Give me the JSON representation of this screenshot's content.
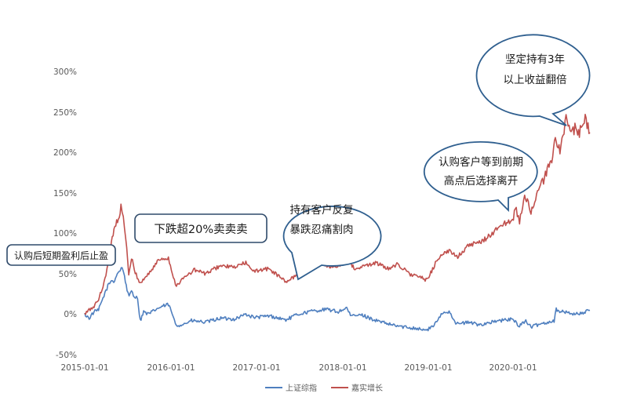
{
  "chart_data": {
    "type": "line",
    "title": "",
    "xlabel": "",
    "ylabel": "",
    "x_ticks": [
      "2015-01-01",
      "2016-01-01",
      "2017-01-01",
      "2018-01-01",
      "2019-01-01",
      "2020-01-01"
    ],
    "y_ticks": [
      "-50%",
      "0%",
      "50%",
      "100%",
      "150%",
      "200%",
      "250%",
      "300%"
    ],
    "ylim": [
      -50,
      300
    ],
    "y_unit": "%",
    "xlim": [
      "2015-01-01",
      "2020-11-30"
    ],
    "grid": false,
    "legend_position": "bottom",
    "series": [
      {
        "name": "上证综指",
        "color": "#4f7fbf",
        "points": [
          [
            "2015-01-01",
            0
          ],
          [
            "2015-01-20",
            -5
          ],
          [
            "2015-02-10",
            3
          ],
          [
            "2015-03-01",
            5
          ],
          [
            "2015-03-20",
            20
          ],
          [
            "2015-04-10",
            35
          ],
          [
            "2015-04-25",
            42
          ],
          [
            "2015-05-05",
            40
          ],
          [
            "2015-05-20",
            50
          ],
          [
            "2015-06-10",
            58
          ],
          [
            "2015-06-20",
            48
          ],
          [
            "2015-07-01",
            28
          ],
          [
            "2015-07-10",
            22
          ],
          [
            "2015-07-20",
            30
          ],
          [
            "2015-08-01",
            22
          ],
          [
            "2015-08-15",
            20
          ],
          [
            "2015-08-26",
            -8
          ],
          [
            "2015-09-10",
            3
          ],
          [
            "2015-10-01",
            0
          ],
          [
            "2015-11-01",
            6
          ],
          [
            "2015-12-01",
            10
          ],
          [
            "2015-12-25",
            12
          ],
          [
            "2016-01-05",
            5
          ],
          [
            "2016-01-15",
            -5
          ],
          [
            "2016-01-28",
            -14
          ],
          [
            "2016-03-01",
            -12
          ],
          [
            "2016-04-01",
            -8
          ],
          [
            "2016-06-01",
            -10
          ],
          [
            "2016-08-01",
            -5
          ],
          [
            "2016-10-01",
            -6
          ],
          [
            "2016-11-20",
            0
          ],
          [
            "2016-12-15",
            -3
          ],
          [
            "2017-01-01",
            -4
          ],
          [
            "2017-03-01",
            -2
          ],
          [
            "2017-05-10",
            -7
          ],
          [
            "2017-07-01",
            0
          ],
          [
            "2017-09-01",
            4
          ],
          [
            "2017-11-01",
            6
          ],
          [
            "2017-12-20",
            3
          ],
          [
            "2018-01-25",
            8
          ],
          [
            "2018-02-10",
            -2
          ],
          [
            "2018-04-01",
            -1
          ],
          [
            "2018-06-01",
            -8
          ],
          [
            "2018-08-01",
            -13
          ],
          [
            "2018-10-01",
            -16
          ],
          [
            "2018-11-15",
            -17
          ],
          [
            "2019-01-04",
            -20
          ],
          [
            "2019-02-15",
            -10
          ],
          [
            "2019-03-05",
            0
          ],
          [
            "2019-04-08",
            4
          ],
          [
            "2019-05-10",
            -12
          ],
          [
            "2019-07-01",
            -10
          ],
          [
            "2019-08-15",
            -13
          ],
          [
            "2019-10-01",
            -10
          ],
          [
            "2019-12-31",
            -6
          ],
          [
            "2020-02-03",
            -14
          ],
          [
            "2020-03-01",
            -8
          ],
          [
            "2020-03-23",
            -16
          ],
          [
            "2020-05-01",
            -12
          ],
          [
            "2020-06-30",
            -8
          ],
          [
            "2020-07-09",
            6
          ],
          [
            "2020-08-01",
            3
          ],
          [
            "2020-09-01",
            2
          ],
          [
            "2020-10-01",
            0
          ],
          [
            "2020-11-01",
            2
          ],
          [
            "2020-11-30",
            5
          ]
        ]
      },
      {
        "name": "嘉实增长",
        "color": "#c0504d",
        "points": [
          [
            "2015-01-01",
            0
          ],
          [
            "2015-01-20",
            5
          ],
          [
            "2015-02-10",
            10
          ],
          [
            "2015-03-01",
            18
          ],
          [
            "2015-03-20",
            35
          ],
          [
            "2015-04-10",
            60
          ],
          [
            "2015-04-25",
            90
          ],
          [
            "2015-05-10",
            110
          ],
          [
            "2015-05-25",
            118
          ],
          [
            "2015-06-05",
            132
          ],
          [
            "2015-06-15",
            120
          ],
          [
            "2015-06-25",
            95
          ],
          [
            "2015-07-08",
            48
          ],
          [
            "2015-07-20",
            70
          ],
          [
            "2015-08-01",
            55
          ],
          [
            "2015-08-26",
            38
          ],
          [
            "2015-09-15",
            45
          ],
          [
            "2015-10-15",
            55
          ],
          [
            "2015-11-15",
            68
          ],
          [
            "2015-12-25",
            70
          ],
          [
            "2016-01-15",
            45
          ],
          [
            "2016-01-28",
            36
          ],
          [
            "2016-03-01",
            45
          ],
          [
            "2016-04-15",
            55
          ],
          [
            "2016-06-01",
            50
          ],
          [
            "2016-08-01",
            60
          ],
          [
            "2016-10-01",
            58
          ],
          [
            "2016-11-20",
            64
          ],
          [
            "2016-12-20",
            52
          ],
          [
            "2017-01-15",
            55
          ],
          [
            "2017-03-01",
            56
          ],
          [
            "2017-05-10",
            40
          ],
          [
            "2017-06-15",
            46
          ],
          [
            "2017-08-01",
            58
          ],
          [
            "2017-10-01",
            62
          ],
          [
            "2017-12-15",
            58
          ],
          [
            "2018-01-25",
            70
          ],
          [
            "2018-03-01",
            55
          ],
          [
            "2018-04-15",
            60
          ],
          [
            "2018-06-01",
            64
          ],
          [
            "2018-07-15",
            56
          ],
          [
            "2018-09-01",
            62
          ],
          [
            "2018-10-20",
            50
          ],
          [
            "2018-12-01",
            46
          ],
          [
            "2019-01-04",
            42
          ],
          [
            "2019-02-20",
            70
          ],
          [
            "2019-04-08",
            78
          ],
          [
            "2019-05-15",
            72
          ],
          [
            "2019-07-01",
            85
          ],
          [
            "2019-08-15",
            88
          ],
          [
            "2019-10-01",
            98
          ],
          [
            "2019-11-15",
            110
          ],
          [
            "2019-12-31",
            115
          ],
          [
            "2020-01-20",
            130
          ],
          [
            "2020-02-03",
            115
          ],
          [
            "2020-02-25",
            145
          ],
          [
            "2020-03-23",
            128
          ],
          [
            "2020-04-20",
            150
          ],
          [
            "2020-05-20",
            168
          ],
          [
            "2020-06-20",
            195
          ],
          [
            "2020-07-09",
            218
          ],
          [
            "2020-07-25",
            205
          ],
          [
            "2020-08-20",
            238
          ],
          [
            "2020-09-15",
            222
          ],
          [
            "2020-10-01",
            232
          ],
          [
            "2020-10-20",
            225
          ],
          [
            "2020-11-10",
            238
          ],
          [
            "2020-11-30",
            225
          ]
        ]
      }
    ]
  },
  "callouts": {
    "left_label": "认购后短期盈利后止盈",
    "drop_label": "下跌超20%卖卖卖",
    "hold_pain_line1": "持有客户反复",
    "hold_pain_line2": "暴跌忍痛割肉",
    "leave_line1": "认购客户等到前期",
    "leave_line2": "高点后选择离开",
    "double_line1": "坚定持有3年",
    "double_line2": "以上收益翻倍"
  },
  "colors": {
    "callout_border": "#2f4a6a",
    "callout_bubble_border": "#2f5f8f",
    "axis_text": "#595959"
  }
}
